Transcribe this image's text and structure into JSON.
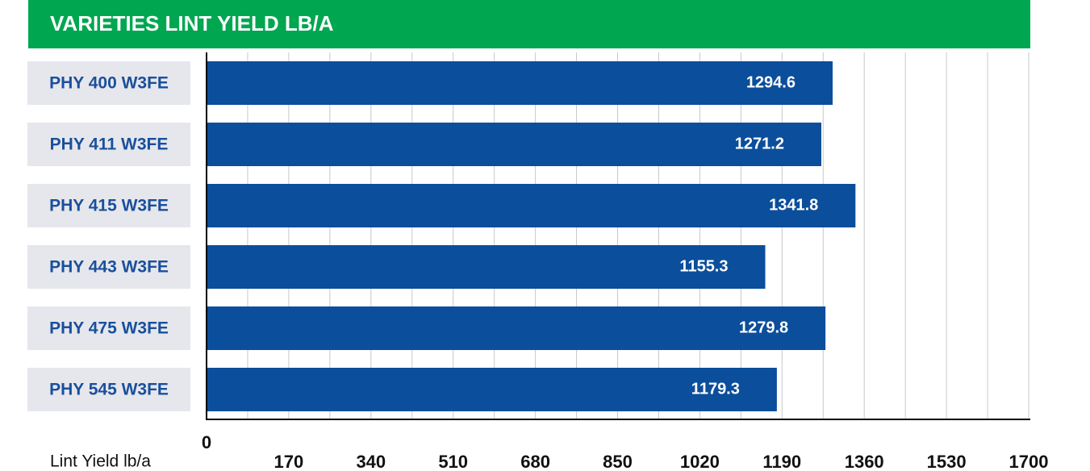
{
  "chart_data": {
    "type": "hbar",
    "title": "VARIETIES LINT YIELD LB/A",
    "x_label": "Lint Yield lb/a",
    "categories": [
      "PHY 400 W3FE",
      "PHY 411 W3FE",
      "PHY 415 W3FE",
      "PHY 443 W3FE",
      "PHY 475 W3FE",
      "PHY 545 W3FE"
    ],
    "values": [
      1294.6,
      1271.2,
      1341.8,
      1155.3,
      1279.8,
      1179.3
    ],
    "color": "#0b4e9b",
    "xlim": [
      0,
      1700
    ],
    "xticks": [
      0,
      170,
      340,
      510,
      680,
      850,
      1020,
      1190,
      1360,
      1530,
      1700
    ],
    "grid": true
  }
}
